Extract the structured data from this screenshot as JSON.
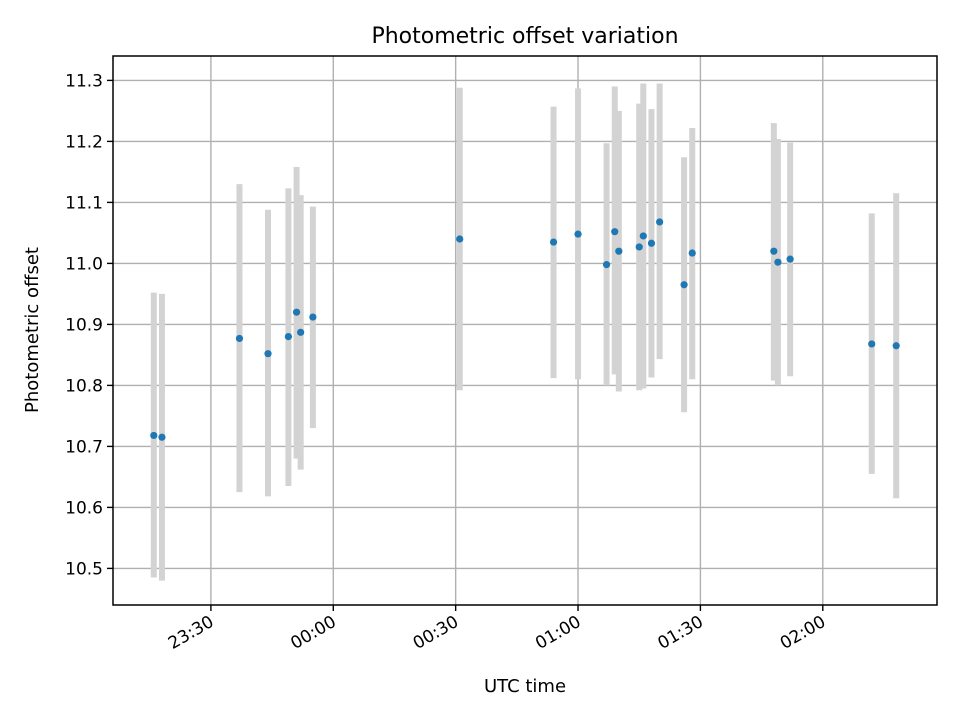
{
  "chart_data": {
    "type": "scatter",
    "title": "Photometric offset variation",
    "xlabel": "UTC time",
    "ylabel": "Photometric offset",
    "x_unit": "hh:mm UTC",
    "xlim": [
      "23:06",
      "02:28"
    ],
    "ylim": [
      10.44,
      11.34
    ],
    "x_ticks": [
      "23:30",
      "00:00",
      "00:30",
      "01:00",
      "01:30",
      "02:00"
    ],
    "y_ticks": [
      "10.5",
      "10.6",
      "10.7",
      "10.8",
      "10.9",
      "11.0",
      "11.1",
      "11.2",
      "11.3"
    ],
    "grid": true,
    "colors": {
      "point": "#1f77b4",
      "errorbar": "#d3d3d3"
    },
    "points": [
      {
        "x": "23:16",
        "y": 10.718,
        "ylo": 10.485,
        "yhi": 10.952
      },
      {
        "x": "23:18",
        "y": 10.715,
        "ylo": 10.48,
        "yhi": 10.95
      },
      {
        "x": "23:37",
        "y": 10.877,
        "ylo": 10.625,
        "yhi": 11.13
      },
      {
        "x": "23:44",
        "y": 10.852,
        "ylo": 10.618,
        "yhi": 11.088
      },
      {
        "x": "23:49",
        "y": 10.88,
        "ylo": 10.635,
        "yhi": 11.123
      },
      {
        "x": "23:51",
        "y": 10.92,
        "ylo": 10.68,
        "yhi": 11.158
      },
      {
        "x": "23:52",
        "y": 10.887,
        "ylo": 10.662,
        "yhi": 11.112
      },
      {
        "x": "23:55",
        "y": 10.912,
        "ylo": 10.73,
        "yhi": 11.093
      },
      {
        "x": "00:31",
        "y": 11.04,
        "ylo": 10.792,
        "yhi": 11.288
      },
      {
        "x": "00:54",
        "y": 11.035,
        "ylo": 10.812,
        "yhi": 11.257
      },
      {
        "x": "01:00",
        "y": 11.048,
        "ylo": 10.81,
        "yhi": 11.287
      },
      {
        "x": "01:07",
        "y": 10.998,
        "ylo": 10.8,
        "yhi": 11.197
      },
      {
        "x": "01:09",
        "y": 11.052,
        "ylo": 10.818,
        "yhi": 11.29
      },
      {
        "x": "01:10",
        "y": 11.02,
        "ylo": 10.79,
        "yhi": 11.25
      },
      {
        "x": "01:15",
        "y": 11.027,
        "ylo": 10.792,
        "yhi": 11.262
      },
      {
        "x": "01:16",
        "y": 11.045,
        "ylo": 10.795,
        "yhi": 11.295
      },
      {
        "x": "01:18",
        "y": 11.033,
        "ylo": 10.813,
        "yhi": 11.253
      },
      {
        "x": "01:20",
        "y": 11.068,
        "ylo": 10.843,
        "yhi": 11.295
      },
      {
        "x": "01:26",
        "y": 10.965,
        "ylo": 10.756,
        "yhi": 11.174
      },
      {
        "x": "01:28",
        "y": 11.017,
        "ylo": 10.81,
        "yhi": 11.222
      },
      {
        "x": "01:48",
        "y": 11.02,
        "ylo": 10.808,
        "yhi": 11.23
      },
      {
        "x": "01:49",
        "y": 11.002,
        "ylo": 10.8,
        "yhi": 11.204
      },
      {
        "x": "01:52",
        "y": 11.007,
        "ylo": 10.815,
        "yhi": 11.198
      },
      {
        "x": "02:12",
        "y": 10.868,
        "ylo": 10.655,
        "yhi": 11.082
      },
      {
        "x": "02:18",
        "y": 10.865,
        "ylo": 10.615,
        "yhi": 11.115
      }
    ]
  }
}
